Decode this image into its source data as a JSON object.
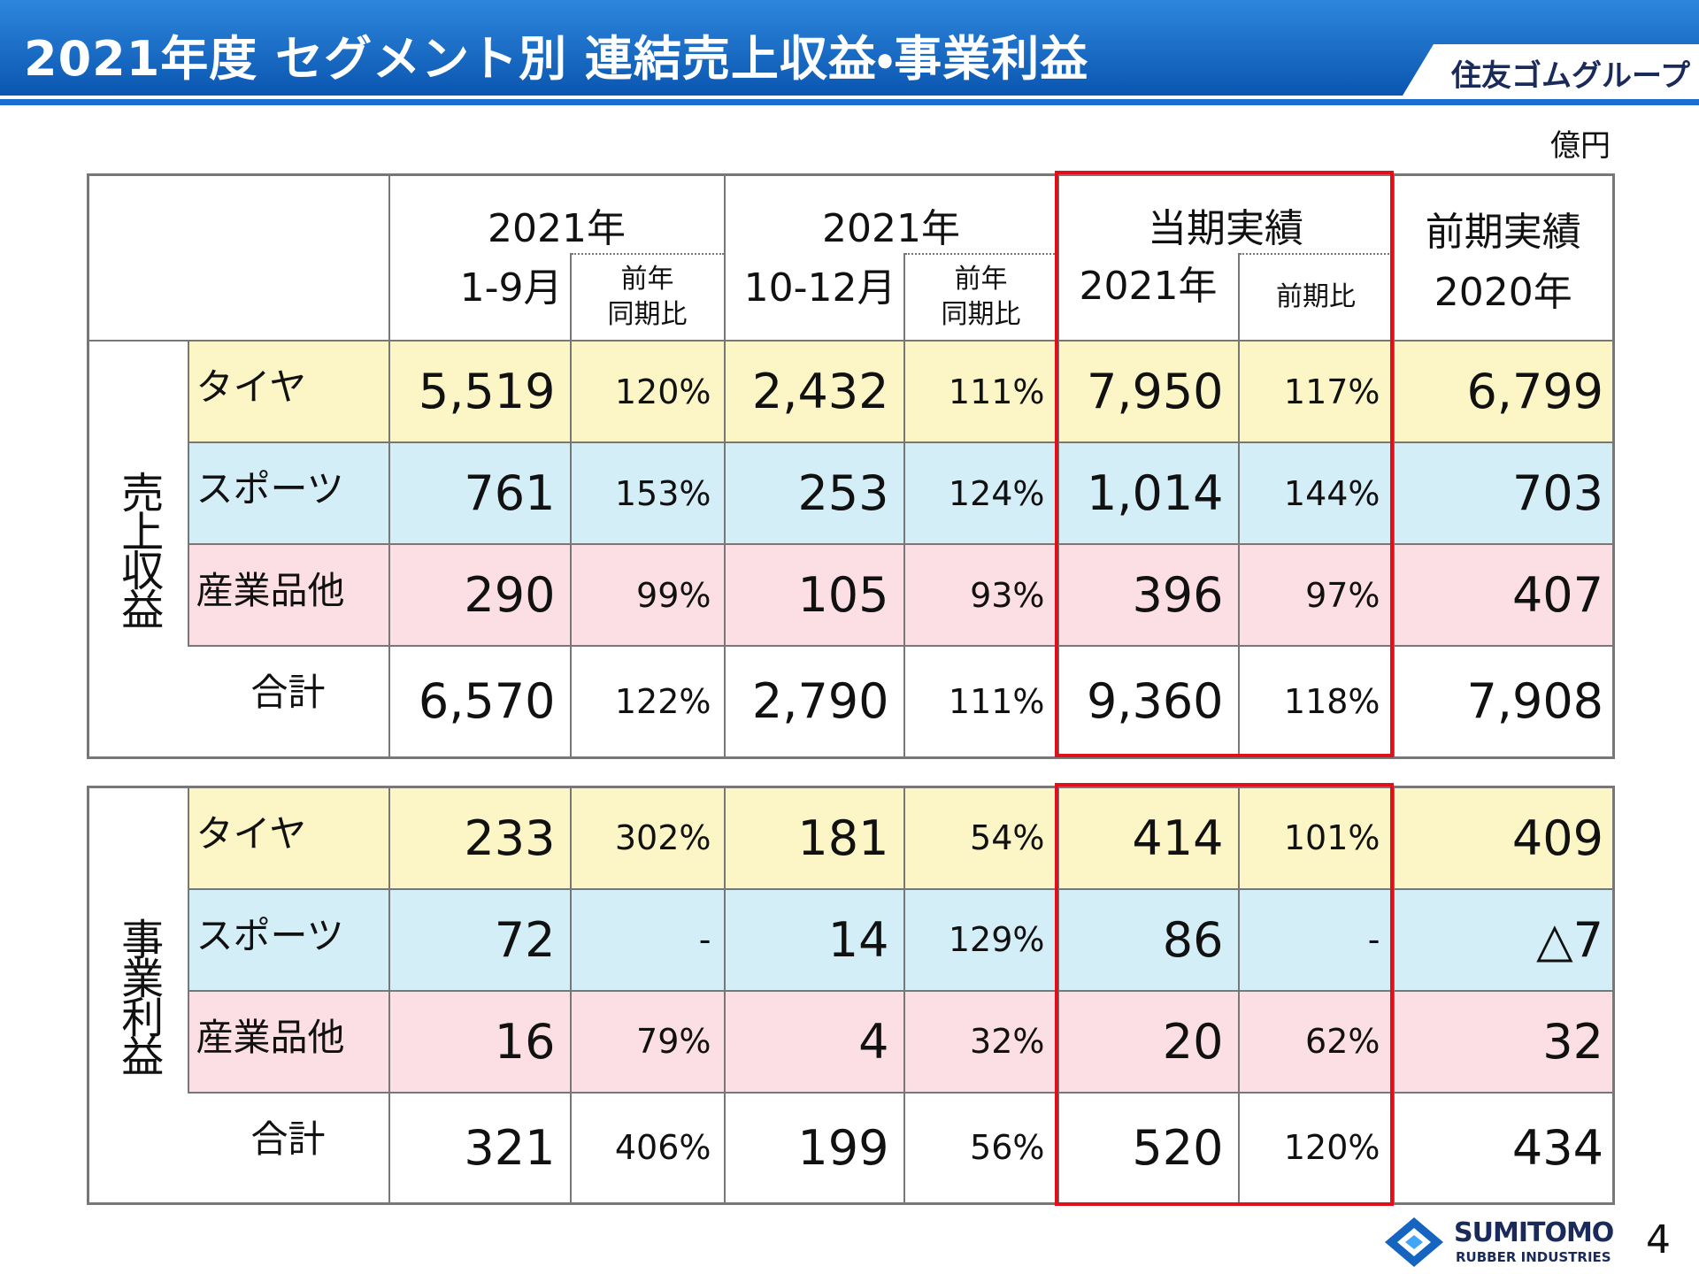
{
  "header": {
    "title": "2021年度 セグメント別 連結売上収益・事業利益",
    "brand": "住友ゴムグループ"
  },
  "unit": "億円",
  "columns": [
    {
      "top": "2021年",
      "bottom": "1-9月",
      "ratio_lines": [
        "前年",
        "同期比"
      ]
    },
    {
      "top": "2021年",
      "bottom": "10-12月",
      "ratio_lines": [
        "前年",
        "同期比"
      ]
    },
    {
      "top": "当期実績",
      "bottom": "2021年",
      "ratio_lines": [
        "前期比"
      ]
    },
    {
      "top": "前期実績",
      "bottom": "2020年"
    }
  ],
  "sections": [
    {
      "label": "売上収益",
      "rows": [
        {
          "label": "タイヤ",
          "cells": [
            "5,519",
            "120%",
            "2,432",
            "111%",
            "7,950",
            "117%",
            "6,799"
          ]
        },
        {
          "label": "スポーツ",
          "cells": [
            "761",
            "153%",
            "253",
            "124%",
            "1,014",
            "144%",
            "703"
          ]
        },
        {
          "label": "産業品他",
          "cells": [
            "290",
            "99%",
            "105",
            "93%",
            "396",
            "97%",
            "407"
          ]
        },
        {
          "label": "合計",
          "cells": [
            "6,570",
            "122%",
            "2,790",
            "111%",
            "9,360",
            "118%",
            "7,908"
          ]
        }
      ]
    },
    {
      "label": "事業利益",
      "rows": [
        {
          "label": "タイヤ",
          "cells": [
            "233",
            "302%",
            "181",
            "54%",
            "414",
            "101%",
            "409"
          ]
        },
        {
          "label": "スポーツ",
          "cells": [
            "72",
            "-",
            "14",
            "129%",
            "86",
            "-",
            "△7"
          ]
        },
        {
          "label": "産業品他",
          "cells": [
            "16",
            "79%",
            "4",
            "32%",
            "20",
            "62%",
            "32"
          ]
        },
        {
          "label": "合計",
          "cells": [
            "321",
            "406%",
            "199",
            "56%",
            "520",
            "120%",
            "434"
          ]
        }
      ]
    }
  ],
  "footer": {
    "logo": "SUMITOMO",
    "logo_sub": "RUBBER INDUSTRIES",
    "page": "4"
  }
}
